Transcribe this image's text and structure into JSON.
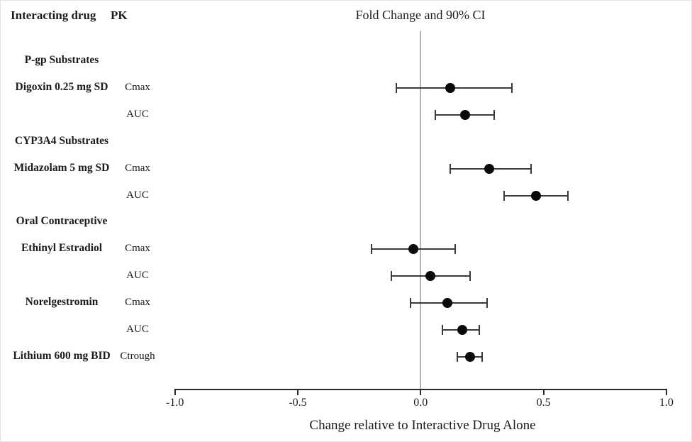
{
  "figure": {
    "left_header_drug": "Interacting drug",
    "left_header_pk": "PK",
    "plot_title": "Fold Change and 90% CI",
    "x_axis_label": "Change relative to Interactive Drug Alone"
  },
  "colors": {
    "point": "#0a0a0a",
    "error_bar": "#3a3a3a",
    "zero_reference_line": "#b3b3b3",
    "axis": "#2a2a2a",
    "text": "#1c1c1c",
    "background": "#ffffff"
  },
  "chart_data": {
    "type": "scatter",
    "subtype": "forest_plot",
    "title": "Fold Change and 90% CI",
    "xlabel": "Change relative to Interactive Drug Alone",
    "xlim": [
      -1.0,
      1.0
    ],
    "x_ticks": [
      -1.0,
      -0.5,
      0.0,
      0.5,
      1.0
    ],
    "x_tick_labels": [
      "-1.0",
      "-0.5",
      "0.0",
      "0.5",
      "1.0"
    ],
    "reference_line_x": 0.0,
    "error_bar_meaning": "90% confidence interval",
    "columns": [
      "Interacting drug",
      "PK",
      "Fold Change",
      "CI lower",
      "CI upper"
    ],
    "rows": [
      {
        "type": "group",
        "label": "P-gp Substrates"
      },
      {
        "type": "data",
        "drug": "Digoxin 0.25 mg SD",
        "pk": "Cmax",
        "fold_change": 0.12,
        "ci_lower": -0.1,
        "ci_upper": 0.37
      },
      {
        "type": "data",
        "drug": "",
        "pk": "AUC",
        "fold_change": 0.18,
        "ci_lower": 0.06,
        "ci_upper": 0.3
      },
      {
        "type": "group",
        "label": "CYP3A4 Substrates"
      },
      {
        "type": "data",
        "drug": "Midazolam 5 mg SD",
        "pk": "Cmax",
        "fold_change": 0.28,
        "ci_lower": 0.12,
        "ci_upper": 0.45
      },
      {
        "type": "data",
        "drug": "",
        "pk": "AUC",
        "fold_change": 0.47,
        "ci_lower": 0.34,
        "ci_upper": 0.6
      },
      {
        "type": "group",
        "label": "Oral Contraceptive"
      },
      {
        "type": "data",
        "drug": "Ethinyl Estradiol",
        "pk": "Cmax",
        "fold_change": -0.03,
        "ci_lower": -0.2,
        "ci_upper": 0.14
      },
      {
        "type": "data",
        "drug": "",
        "pk": "AUC",
        "fold_change": 0.04,
        "ci_lower": -0.12,
        "ci_upper": 0.2
      },
      {
        "type": "data",
        "drug": "Norelgestromin",
        "pk": "Cmax",
        "fold_change": 0.11,
        "ci_lower": -0.04,
        "ci_upper": 0.27
      },
      {
        "type": "data",
        "drug": "",
        "pk": "AUC",
        "fold_change": 0.17,
        "ci_lower": 0.09,
        "ci_upper": 0.24
      },
      {
        "type": "data",
        "drug": "Lithium 600 mg BID",
        "pk": "Ctrough",
        "fold_change": 0.2,
        "ci_lower": 0.15,
        "ci_upper": 0.25
      }
    ]
  }
}
